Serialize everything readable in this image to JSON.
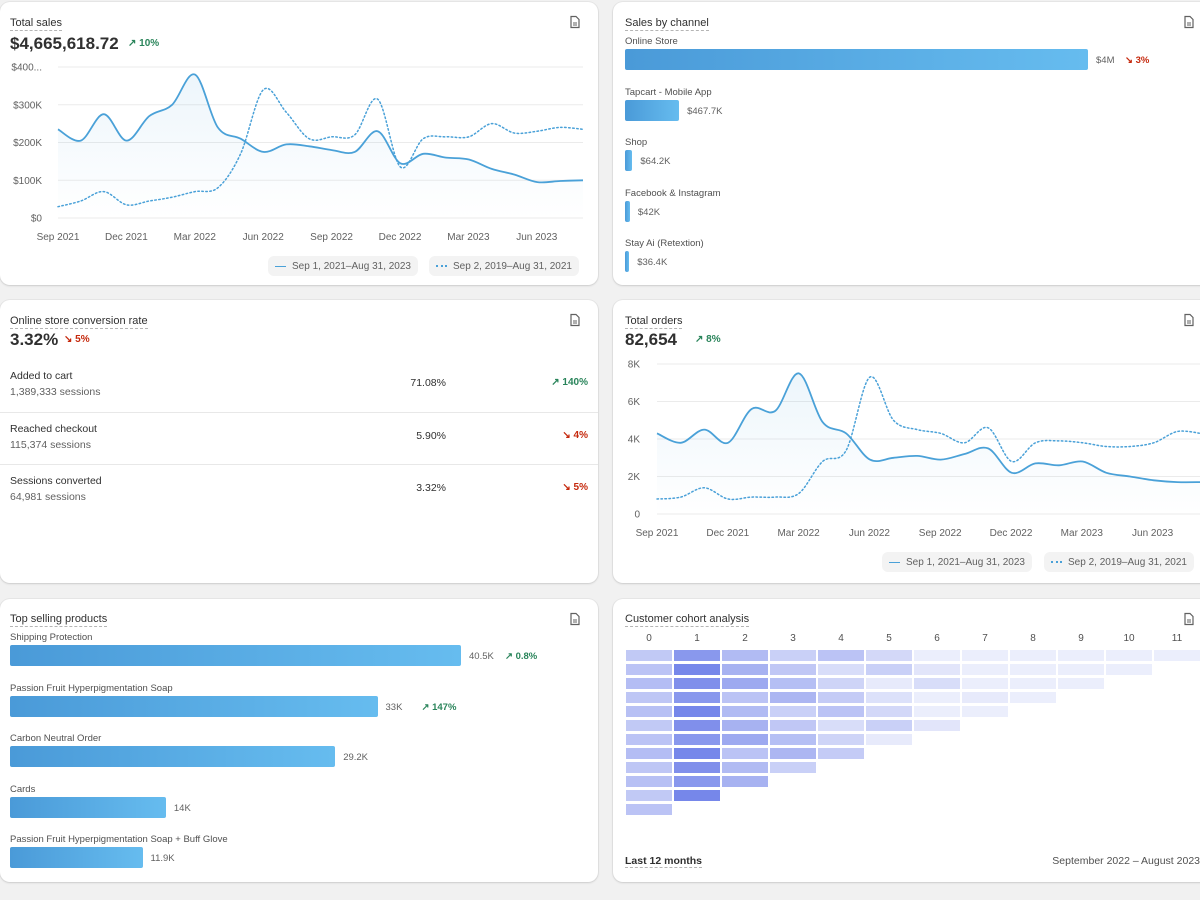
{
  "total_sales": {
    "title": "Total sales",
    "value": "$4,665,618.72",
    "delta": "10%",
    "y_ticks": [
      "$400...",
      "$300K",
      "$200K",
      "$100K",
      "$0"
    ],
    "x_ticks": [
      "Sep 2021",
      "Dec 2021",
      "Mar 2022",
      "Jun 2022",
      "Sep 2022",
      "Dec 2022",
      "Mar 2023",
      "Jun 2023"
    ],
    "legend_current": "Sep 1, 2021–Aug 31, 2023",
    "legend_previous": "Sep 2, 2019–Aug 31, 2021"
  },
  "sales_by_channel": {
    "title": "Sales by channel",
    "channels": [
      {
        "name": "Online Store",
        "value_text": "$4M",
        "delta": "3%",
        "value": 4000000
      },
      {
        "name": "Tapcart - Mobile App",
        "value_text": "$467.7K",
        "delta": "",
        "value": 467700
      },
      {
        "name": "Shop",
        "value_text": "$64.2K",
        "delta": "",
        "value": 64200
      },
      {
        "name": "Facebook & Instagram",
        "value_text": "$42K",
        "delta": "",
        "value": 42000
      },
      {
        "name": "Stay Ai (Retextion)",
        "value_text": "$36.4K",
        "delta": "",
        "value": 36400
      }
    ]
  },
  "conversion": {
    "title": "Online store conversion rate",
    "value": "3.32%",
    "delta": "5%",
    "rows": [
      {
        "label": "Added to cart",
        "sessions": "1,389,333 sessions",
        "pct": "71.08%",
        "change": "140%",
        "dir": "up"
      },
      {
        "label": "Reached checkout",
        "sessions": "115,374 sessions",
        "pct": "5.90%",
        "change": "4%",
        "dir": "down"
      },
      {
        "label": "Sessions converted",
        "sessions": "64,981 sessions",
        "pct": "3.32%",
        "change": "5%",
        "dir": "down"
      }
    ]
  },
  "total_orders": {
    "title": "Total orders",
    "value": "82,654",
    "delta": "8%",
    "y_ticks": [
      "8K",
      "6K",
      "4K",
      "2K",
      "0"
    ],
    "x_ticks": [
      "Sep 2021",
      "Dec 2021",
      "Mar 2022",
      "Jun 2022",
      "Sep 2022",
      "Dec 2022",
      "Mar 2023",
      "Jun 2023"
    ],
    "legend_current": "Sep 1, 2021–Aug 31, 2023",
    "legend_previous": "Sep 2, 2019–Aug 31, 2021"
  },
  "top_products": {
    "title": "Top selling products",
    "items": [
      {
        "name": "Shipping Protection",
        "value_text": "40.5K",
        "delta": "0.8%",
        "value": 40500
      },
      {
        "name": "Passion Fruit Hyperpigmentation Soap",
        "value_text": "33K",
        "delta": "147%",
        "value": 33000
      },
      {
        "name": "Carbon Neutral Order",
        "value_text": "29.2K",
        "delta": "",
        "value": 29200
      },
      {
        "name": "Cards",
        "value_text": "14K",
        "delta": "",
        "value": 14000
      },
      {
        "name": "Passion Fruit Hyperpigmentation Soap + Buff Glove",
        "value_text": "11.9K",
        "delta": "",
        "value": 11900
      }
    ]
  },
  "cohort": {
    "title": "Customer cohort analysis",
    "columns": [
      "0",
      "1",
      "2",
      "3",
      "4",
      "5",
      "6",
      "7",
      "8",
      "9",
      "10",
      "11"
    ],
    "footer_left": "Last 12 months",
    "footer_right": "September 2022 – August 2023"
  },
  "chart_data": [
    {
      "type": "line",
      "title": "Total sales",
      "x": [
        "Sep 2021",
        "Oct 2021",
        "Nov 2021",
        "Dec 2021",
        "Jan 2022",
        "Feb 2022",
        "Mar 2022",
        "Apr 2022",
        "May 2022",
        "Jun 2022",
        "Jul 2022",
        "Aug 2022",
        "Sep 2022",
        "Oct 2022",
        "Nov 2022",
        "Dec 2022",
        "Jan 2023",
        "Feb 2023",
        "Mar 2023",
        "Apr 2023",
        "May 2023",
        "Jun 2023",
        "Jul 2023",
        "Aug 2023"
      ],
      "series": [
        {
          "name": "Sep 1, 2021–Aug 31, 2023",
          "values": [
            235000,
            205000,
            275000,
            205000,
            270000,
            300000,
            380000,
            240000,
            210000,
            175000,
            195000,
            190000,
            180000,
            175000,
            230000,
            145000,
            170000,
            160000,
            155000,
            130000,
            115000,
            95000,
            98000,
            100000
          ]
        },
        {
          "name": "Sep 2, 2019–Aug 31, 2021",
          "values": [
            30000,
            45000,
            70000,
            35000,
            45000,
            55000,
            70000,
            80000,
            170000,
            340000,
            280000,
            210000,
            215000,
            220000,
            315000,
            135000,
            210000,
            215000,
            215000,
            250000,
            225000,
            230000,
            240000,
            235000
          ]
        }
      ],
      "ylim": [
        0,
        400000
      ]
    },
    {
      "type": "bar",
      "title": "Sales by channel",
      "categories": [
        "Online Store",
        "Tapcart - Mobile App",
        "Shop",
        "Facebook & Instagram",
        "Stay Ai (Retextion)"
      ],
      "values": [
        4000000,
        467700,
        64200,
        42000,
        36400
      ]
    },
    {
      "type": "line",
      "title": "Total orders",
      "x": [
        "Sep 2021",
        "Oct 2021",
        "Nov 2021",
        "Dec 2021",
        "Jan 2022",
        "Feb 2022",
        "Mar 2022",
        "Apr 2022",
        "May 2022",
        "Jun 2022",
        "Jul 2022",
        "Aug 2022",
        "Sep 2022",
        "Oct 2022",
        "Nov 2022",
        "Dec 2022",
        "Jan 2023",
        "Feb 2023",
        "Mar 2023",
        "Apr 2023",
        "May 2023",
        "Jun 2023",
        "Jul 2023",
        "Aug 2023"
      ],
      "series": [
        {
          "name": "Sep 1, 2021–Aug 31, 2023",
          "values": [
            4300,
            3800,
            4500,
            3800,
            5600,
            5500,
            7500,
            4900,
            4300,
            2900,
            3000,
            3100,
            2900,
            3200,
            3500,
            2200,
            2700,
            2600,
            2800,
            2200,
            2000,
            1800,
            1700,
            1700
          ]
        },
        {
          "name": "Sep 2, 2019–Aug 31, 2021",
          "values": [
            800,
            900,
            1400,
            800,
            900,
            900,
            1100,
            2800,
            3400,
            7300,
            5000,
            4500,
            4300,
            3800,
            4600,
            2800,
            3800,
            3900,
            3800,
            3600,
            3600,
            3800,
            4400,
            4300
          ]
        }
      ],
      "ylim": [
        0,
        8000
      ]
    },
    {
      "type": "bar",
      "title": "Top selling products",
      "categories": [
        "Shipping Protection",
        "Passion Fruit Hyperpigmentation Soap",
        "Carbon Neutral Order",
        "Cards",
        "Passion Fruit Hyperpigmentation Soap + Buff Glove"
      ],
      "values": [
        40500,
        33000,
        29200,
        14000,
        11900
      ]
    }
  ]
}
